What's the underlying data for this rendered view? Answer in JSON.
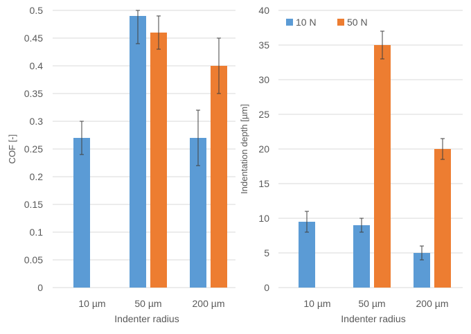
{
  "chart_data": [
    {
      "type": "bar",
      "title": "",
      "xlabel": "Indenter radius",
      "ylabel": "COF [-]",
      "categories": [
        "10 µm",
        "50 µm",
        "200 µm"
      ],
      "ylim": [
        0,
        0.5
      ],
      "yticks": [
        0,
        0.05,
        0.1,
        0.15,
        0.2,
        0.25,
        0.3,
        0.35,
        0.4,
        0.45,
        0.5
      ],
      "ytick_labels": [
        "0",
        "0.05",
        "0.1",
        "0.15",
        "0.2",
        "0.25",
        "0.3",
        "0.35",
        "0.4",
        "0.45",
        "0.5"
      ],
      "grid": true,
      "legend": "none",
      "series": [
        {
          "name": "10 N",
          "color": "#5b9bd5",
          "values": [
            0.27,
            0.49,
            0.27
          ],
          "err_low": [
            0.24,
            0.44,
            0.22
          ],
          "err_high": [
            0.3,
            0.5,
            0.32
          ]
        },
        {
          "name": "50 N",
          "color": "#ed7d31",
          "values": [
            null,
            0.46,
            0.4
          ],
          "err_low": [
            null,
            0.43,
            0.35
          ],
          "err_high": [
            null,
            0.49,
            0.45
          ]
        }
      ]
    },
    {
      "type": "bar",
      "title": "",
      "xlabel": "Indenter radius",
      "ylabel": "Indentation depth [µm]",
      "categories": [
        "10 µm",
        "50 µm",
        "200 µm"
      ],
      "ylim": [
        0,
        40
      ],
      "yticks": [
        0,
        5,
        10,
        15,
        20,
        25,
        30,
        35,
        40
      ],
      "ytick_labels": [
        "0",
        "5",
        "10",
        "15",
        "20",
        "25",
        "30",
        "35",
        "40"
      ],
      "grid": true,
      "legend": "top-left",
      "series": [
        {
          "name": "10 N",
          "color": "#5b9bd5",
          "values": [
            9.5,
            9.0,
            5.0
          ],
          "err_low": [
            8.0,
            8.0,
            4.0
          ],
          "err_high": [
            11.0,
            10.0,
            6.0
          ]
        },
        {
          "name": "50 N",
          "color": "#ed7d31",
          "values": [
            null,
            35.0,
            20.0
          ],
          "err_low": [
            null,
            33.0,
            18.5
          ],
          "err_high": [
            null,
            37.0,
            21.5
          ]
        }
      ]
    }
  ]
}
